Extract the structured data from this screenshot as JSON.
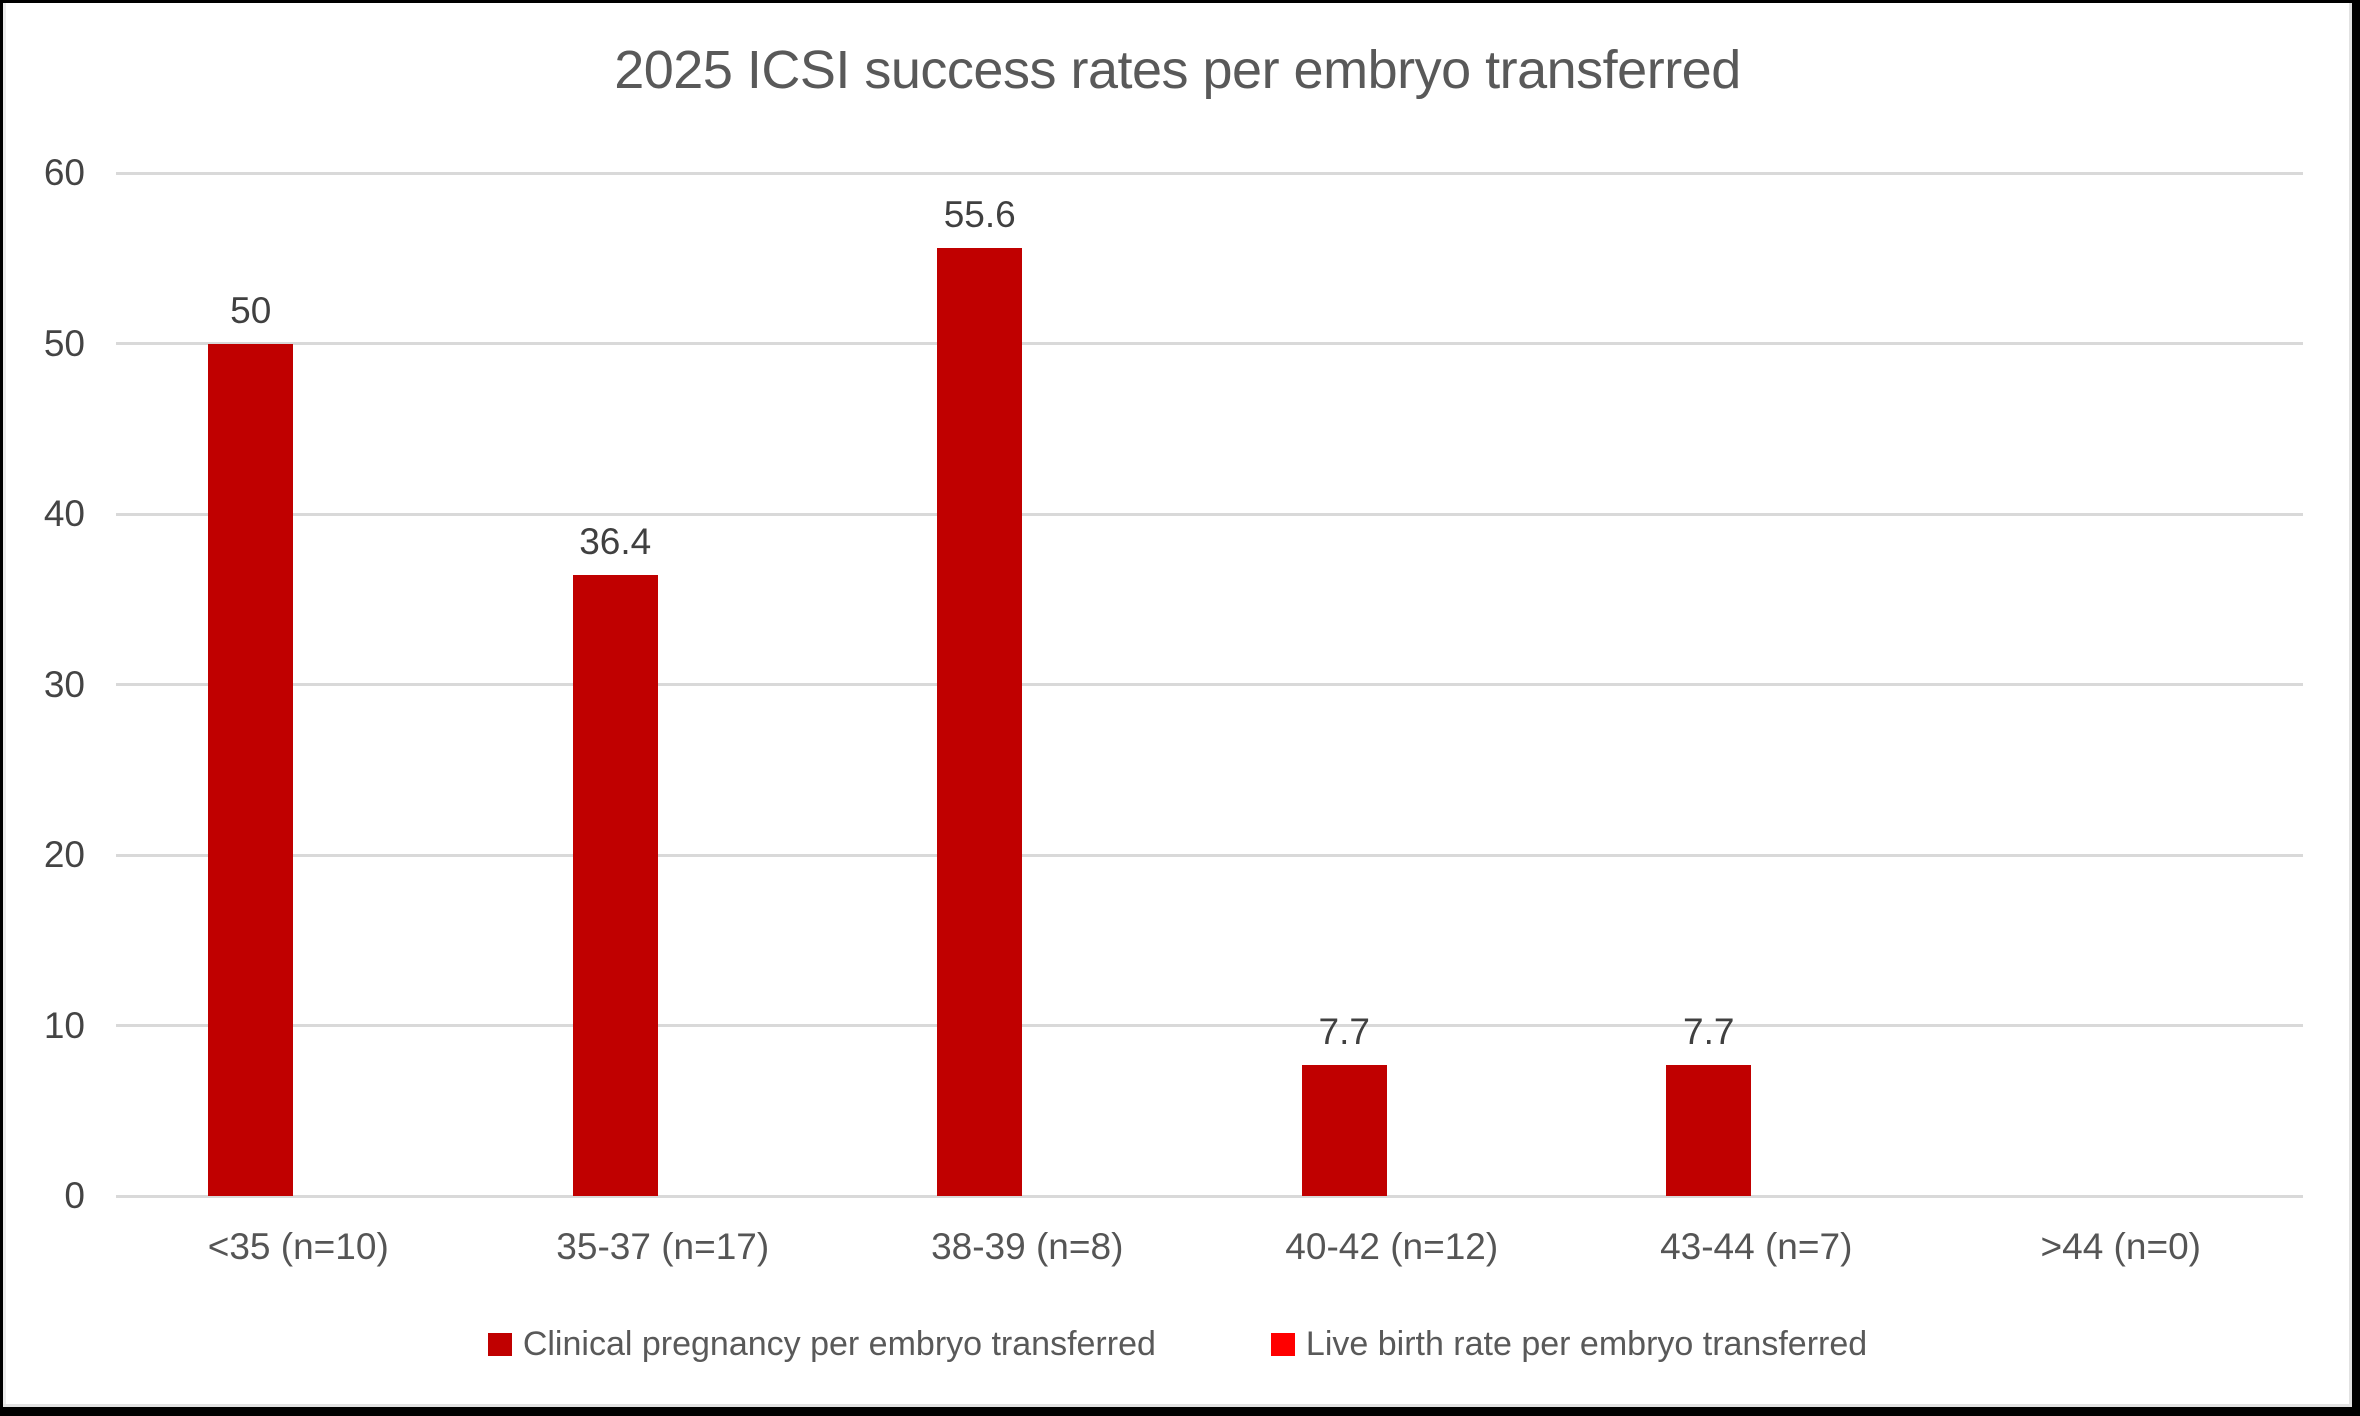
{
  "colors": {
    "series1": "#c00000",
    "series2": "#ff0000",
    "gridline": "#d9d9d9",
    "title_text": "#595959",
    "tick_text": "#444444",
    "frame": "#000000"
  },
  "chart_data": {
    "type": "bar",
    "title": "2025 ICSI success rates per embryo transferred",
    "categories": [
      "<35 (n=10)",
      "35-37 (n=17)",
      "38-39 (n=8)",
      "40-42 (n=12)",
      "43-44 (n=7)",
      ">44 (n=0)"
    ],
    "series": [
      {
        "name": "Clinical pregnancy per embryo transferred",
        "color": "#c00000",
        "values": [
          50,
          36.4,
          55.6,
          7.7,
          7.7,
          0
        ],
        "data_labels": [
          "50",
          "36.4",
          "55.6",
          "7.7",
          "7.7",
          ""
        ]
      },
      {
        "name": "Live birth rate per embryo transferred",
        "color": "#ff0000",
        "values": [
          0,
          0,
          0,
          0,
          0,
          0
        ],
        "data_labels": [
          "",
          "",
          "",
          "",
          "",
          ""
        ]
      }
    ],
    "ylim": [
      0,
      60
    ],
    "yticks": [
      0,
      10,
      20,
      30,
      40,
      50,
      60
    ],
    "xlabel": "",
    "ylabel": "",
    "grid": true,
    "legend_position": "bottom"
  }
}
